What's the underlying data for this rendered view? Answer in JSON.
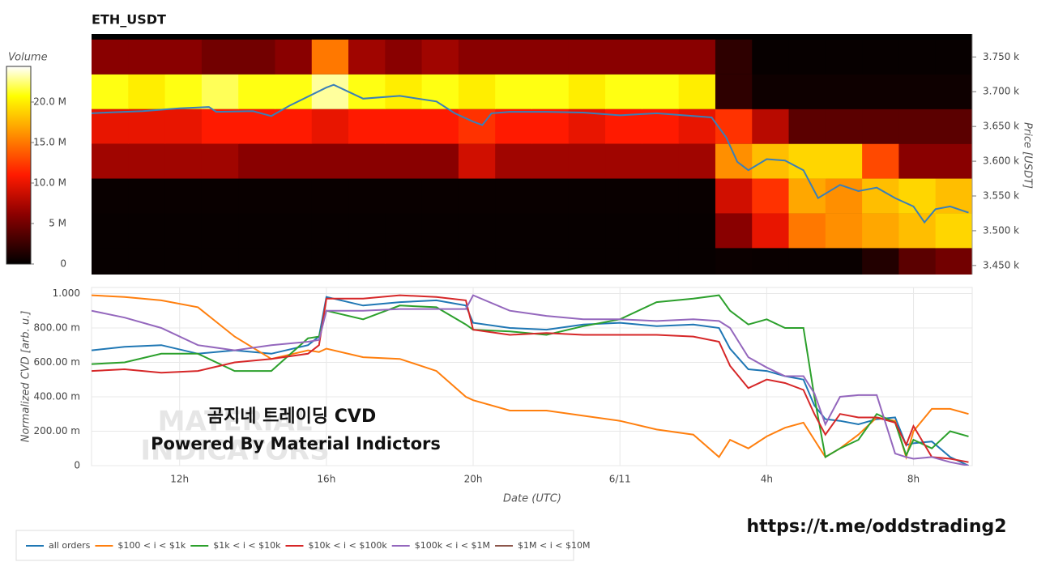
{
  "chart_data": [
    {
      "type": "heatmap",
      "title": "ETH_USDT",
      "colorbar_label": "Volume",
      "y_label": "Price [USDT]",
      "colormap": "hot",
      "x_bins": [
        9.6,
        10.6,
        11.6,
        12.6,
        13.6,
        14.6,
        15.6,
        16.6,
        17.6,
        18.6,
        19.6,
        20.6,
        21.6,
        22.6,
        23.6,
        24.6,
        25.6,
        26.6,
        27.6,
        28.6,
        29.6,
        30.6,
        31.6,
        32.6,
        33.6
      ],
      "y_bins": [
        3425,
        3475,
        3525,
        3575,
        3625,
        3675,
        3725,
        3775
      ],
      "values": [
        [
          300000,
          300000,
          300000,
          300000,
          300000,
          300000,
          300000,
          300000,
          300000,
          300000,
          300000,
          300000,
          300000,
          300000,
          300000,
          300000,
          300000,
          500000,
          400000,
          400000,
          400000,
          1500000,
          4000000,
          5000000
        ],
        [
          300000,
          300000,
          300000,
          300000,
          300000,
          300000,
          300000,
          300000,
          300000,
          300000,
          300000,
          300000,
          300000,
          300000,
          300000,
          300000,
          300000,
          6000000,
          10000000,
          15000000,
          16000000,
          17000000,
          18000000,
          19000000
        ],
        [
          400000,
          400000,
          400000,
          400000,
          400000,
          400000,
          400000,
          400000,
          400000,
          400000,
          400000,
          400000,
          400000,
          400000,
          400000,
          400000,
          400000,
          9000000,
          12000000,
          17000000,
          16000000,
          18000000,
          19000000,
          18000000
        ],
        [
          7000000,
          7000000,
          7000000,
          7000000,
          6000000,
          6000000,
          6000000,
          6000000,
          6000000,
          6000000,
          9000000,
          7000000,
          7000000,
          7000000,
          7000000,
          7000000,
          7000000,
          16000000,
          18000000,
          19000000,
          19000000,
          13000000,
          6000000,
          6000000
        ],
        [
          10000000,
          10000000,
          10000000,
          11000000,
          11000000,
          11000000,
          10000000,
          11000000,
          11000000,
          11000000,
          12000000,
          11000000,
          11000000,
          10000000,
          11000000,
          11000000,
          10000000,
          12000000,
          8000000,
          4000000,
          4000000,
          4000000,
          4000000,
          4000000
        ],
        [
          21000000,
          20000000,
          21000000,
          22000000,
          21000000,
          21000000,
          23000000,
          21000000,
          20000000,
          21000000,
          20000000,
          21000000,
          21000000,
          20000000,
          21000000,
          21000000,
          20000000,
          2000000,
          600000,
          600000,
          600000,
          600000,
          600000,
          600000
        ],
        [
          6000000,
          6000000,
          6000000,
          5000000,
          5000000,
          6000000,
          15000000,
          7000000,
          6000000,
          7000000,
          6000000,
          6000000,
          6000000,
          6000000,
          6000000,
          6000000,
          6000000,
          2000000,
          300000,
          300000,
          300000,
          300000,
          300000,
          300000
        ]
      ],
      "zlim": [
        0,
        24400000
      ],
      "zticks": [
        0,
        {
          "value": 5000000,
          "label": "5 M"
        },
        {
          "value": 10000000,
          "label": "10.0 M"
        },
        {
          "value": 15000000,
          "label": "15.0 M"
        },
        {
          "value": 20000000,
          "label": "20.0 M"
        }
      ],
      "xlim": [
        9.6,
        33.6
      ],
      "ylim": [
        3437,
        3783
      ],
      "yticks": [
        {
          "value": 3450,
          "label": "3.450 k"
        },
        {
          "value": 3500,
          "label": "3.500 k"
        },
        {
          "value": 3550,
          "label": "3.550 k"
        },
        {
          "value": 3600,
          "label": "3.600 k"
        },
        {
          "value": 3650,
          "label": "3.650 k"
        },
        {
          "value": 3700,
          "label": "3.700 k"
        },
        {
          "value": 3750,
          "label": "3.750 k"
        }
      ],
      "line": {
        "color": "#3a7fb8",
        "x": [
          9.6,
          10,
          11,
          12,
          12.8,
          13,
          14,
          14.5,
          15,
          16,
          16.2,
          17,
          18,
          19,
          19.5,
          20,
          20.25,
          20.5,
          21,
          22,
          23,
          24,
          25,
          26,
          26.5,
          26.9,
          27.2,
          27.5,
          28,
          28.5,
          29,
          29.4,
          30,
          30.5,
          31,
          31.5,
          32,
          32.3,
          32.6,
          33,
          33.5
        ],
        "values": [
          3669,
          3670,
          3672,
          3676,
          3678,
          3671,
          3672,
          3665,
          3680,
          3706,
          3710,
          3690,
          3694,
          3686,
          3669,
          3657,
          3652,
          3669,
          3671,
          3671,
          3670,
          3666,
          3669,
          3665,
          3663,
          3634,
          3599,
          3587,
          3603,
          3601,
          3587,
          3547,
          3566,
          3557,
          3562,
          3547,
          3535,
          3512,
          3531,
          3535,
          3526
        ]
      }
    },
    {
      "type": "line",
      "y_label": "Normalized CVD [arb. u.]",
      "x_label": "Date (UTC)",
      "grid": true,
      "legend": "bottom-left",
      "x": [
        9.6,
        10.5,
        11.5,
        12.5,
        13.5,
        14.5,
        15.5,
        15.8,
        16,
        17,
        18,
        19,
        19.8,
        20,
        21,
        22,
        23,
        24,
        25,
        26,
        26.7,
        27,
        27.5,
        28,
        28.5,
        29,
        29.3,
        29.6,
        30,
        30.5,
        31,
        31.5,
        31.8,
        32,
        32.5,
        33,
        33.5
      ],
      "xlim": [
        9.6,
        33.6
      ],
      "xticks": [
        {
          "value": 12,
          "label": "12h"
        },
        {
          "value": 16,
          "label": "16h"
        },
        {
          "value": 20,
          "label": "20h"
        },
        {
          "value": 24,
          "label": "6/11"
        },
        {
          "value": 28,
          "label": "4h"
        },
        {
          "value": 32,
          "label": "8h"
        }
      ],
      "ylim": [
        0,
        1.035
      ],
      "yticks": [
        0,
        {
          "value": 0.2,
          "label": "200.00 m"
        },
        {
          "value": 0.4,
          "label": "400.00 m"
        },
        {
          "value": 0.6,
          "label": "600.00 m"
        },
        {
          "value": 0.8,
          "label": "800.00 m"
        },
        {
          "value": 1,
          "label": "1.000"
        }
      ],
      "series": [
        {
          "name": "all orders",
          "color": "#1f77b4",
          "values": [
            0.67,
            0.69,
            0.7,
            0.65,
            0.67,
            0.65,
            0.7,
            0.75,
            0.98,
            0.93,
            0.95,
            0.96,
            0.93,
            0.83,
            0.8,
            0.79,
            0.82,
            0.83,
            0.81,
            0.82,
            0.8,
            0.68,
            0.56,
            0.55,
            0.52,
            0.5,
            0.35,
            0.27,
            0.26,
            0.24,
            0.27,
            0.28,
            0.12,
            0.13,
            0.14,
            0.05,
            0.0
          ]
        },
        {
          "name": "$100 < i < $1k",
          "color": "#ff7f0e",
          "values": [
            0.99,
            0.98,
            0.96,
            0.92,
            0.75,
            0.62,
            0.67,
            0.66,
            0.68,
            0.63,
            0.62,
            0.55,
            0.4,
            0.38,
            0.32,
            0.32,
            0.29,
            0.26,
            0.21,
            0.18,
            0.05,
            0.15,
            0.1,
            0.17,
            0.22,
            0.25,
            0.15,
            0.05,
            0.1,
            0.18,
            0.28,
            0.26,
            0.05,
            0.2,
            0.33,
            0.33,
            0.3
          ]
        },
        {
          "name": "$1k < i < $10k",
          "color": "#2ca02c",
          "values": [
            0.59,
            0.6,
            0.65,
            0.65,
            0.55,
            0.55,
            0.74,
            0.75,
            0.9,
            0.85,
            0.93,
            0.92,
            0.82,
            0.79,
            0.78,
            0.76,
            0.81,
            0.85,
            0.95,
            0.97,
            0.99,
            0.9,
            0.82,
            0.85,
            0.8,
            0.8,
            0.4,
            0.05,
            0.1,
            0.15,
            0.3,
            0.25,
            0.06,
            0.15,
            0.1,
            0.2,
            0.17
          ]
        },
        {
          "name": "$10k < i < $100k",
          "color": "#d62728",
          "values": [
            0.55,
            0.56,
            0.54,
            0.55,
            0.6,
            0.62,
            0.65,
            0.7,
            0.97,
            0.97,
            0.99,
            0.98,
            0.96,
            0.79,
            0.76,
            0.77,
            0.76,
            0.76,
            0.76,
            0.75,
            0.72,
            0.58,
            0.45,
            0.5,
            0.48,
            0.44,
            0.3,
            0.18,
            0.3,
            0.28,
            0.28,
            0.25,
            0.12,
            0.23,
            0.05,
            0.04,
            0.02
          ]
        },
        {
          "name": "$100k < i < $1M",
          "color": "#9467bd",
          "values": [
            0.9,
            0.86,
            0.8,
            0.7,
            0.67,
            0.7,
            0.72,
            0.73,
            0.9,
            0.9,
            0.91,
            0.91,
            0.91,
            0.99,
            0.9,
            0.87,
            0.85,
            0.85,
            0.84,
            0.85,
            0.84,
            0.8,
            0.63,
            0.57,
            0.52,
            0.52,
            0.42,
            0.24,
            0.4,
            0.41,
            0.41,
            0.07,
            0.05,
            0.04,
            0.05,
            0.02,
            0.0
          ]
        },
        {
          "name": "$1M < i < $10M",
          "color": "#8c564b",
          "values": [
            null,
            null,
            null,
            null,
            null,
            null,
            null,
            null,
            null,
            null,
            null,
            null,
            null,
            null,
            null,
            null,
            null,
            null,
            null,
            null,
            null,
            null,
            null,
            null,
            null,
            null,
            null,
            null,
            null,
            null,
            null,
            null,
            null,
            null,
            null,
            null,
            null
          ]
        }
      ],
      "annotations": [
        "MATERIAL",
        "INDICATORS",
        "곰지네 트레이딩 CVD",
        "Powered By Material Indictors",
        "https://t.me/oddstrading2"
      ]
    }
  ]
}
